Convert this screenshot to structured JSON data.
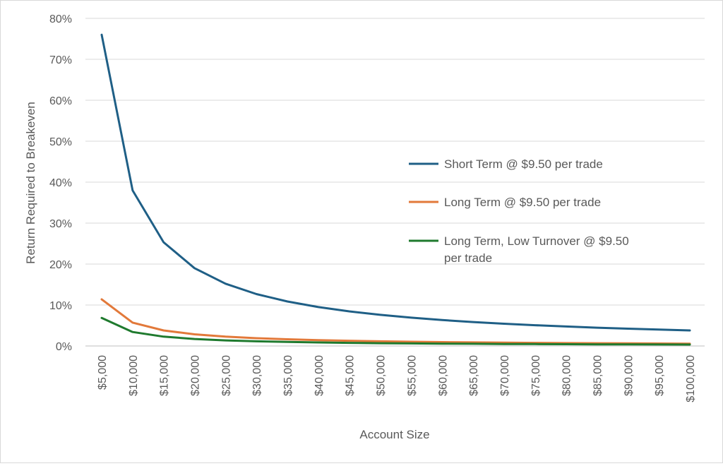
{
  "chart_data": {
    "type": "line",
    "title": "",
    "xlabel": "Account Size",
    "ylabel": "Return Required to Breakeven",
    "ylim": [
      0,
      0.8
    ],
    "y_ticks": [
      "0%",
      "10%",
      "20%",
      "30%",
      "40%",
      "50%",
      "60%",
      "70%",
      "80%"
    ],
    "grid": true,
    "legend_position": "right",
    "categories": [
      "$5,000",
      "$10,000",
      "$15,000",
      "$20,000",
      "$25,000",
      "$30,000",
      "$35,000",
      "$40,000",
      "$45,000",
      "$50,000",
      "$55,000",
      "$60,000",
      "$65,000",
      "$70,000",
      "$75,000",
      "$80,000",
      "$85,000",
      "$90,000",
      "$95,000",
      "$100,000"
    ],
    "series": [
      {
        "name": "Short Term @ $9.50 per trade",
        "color": "#1f5f86",
        "values": [
          0.76,
          0.38,
          0.2533,
          0.19,
          0.152,
          0.1267,
          0.1086,
          0.095,
          0.0844,
          0.076,
          0.0691,
          0.0633,
          0.0585,
          0.0543,
          0.0507,
          0.0475,
          0.0447,
          0.0422,
          0.04,
          0.038
        ]
      },
      {
        "name": "Long Term @ $9.50 per trade",
        "color": "#e2793a",
        "values": [
          0.114,
          0.057,
          0.038,
          0.0285,
          0.0228,
          0.019,
          0.0163,
          0.0143,
          0.0127,
          0.0114,
          0.0104,
          0.0095,
          0.0088,
          0.0081,
          0.0076,
          0.0071,
          0.0067,
          0.0063,
          0.006,
          0.0057
        ]
      },
      {
        "name": "Long Term, Low Turnover @ $9.50 per trade",
        "color": "#1f7a2e",
        "values": [
          0.0684,
          0.0342,
          0.0228,
          0.0171,
          0.0137,
          0.0114,
          0.0098,
          0.0086,
          0.0076,
          0.0068,
          0.0062,
          0.0057,
          0.0053,
          0.0049,
          0.0046,
          0.0043,
          0.004,
          0.0038,
          0.0036,
          0.0034
        ]
      }
    ]
  }
}
